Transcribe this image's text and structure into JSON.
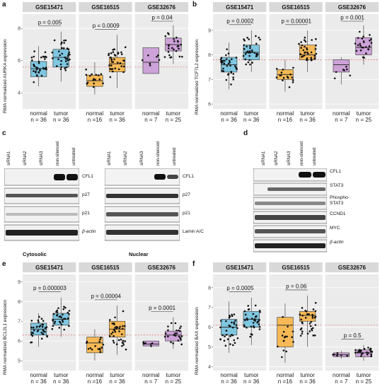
{
  "panels": {
    "a": {
      "letter": "a",
      "ylabel": "RMA normalized AURKA expression",
      "ylim": [
        3,
        8.8
      ],
      "yticks": [
        4,
        6,
        8
      ],
      "refline": 5.6,
      "groups": [
        {
          "title": "GSE15471",
          "pvalue": "p = 0.005",
          "boxes": [
            {
              "x": "normal",
              "n": "n = 36",
              "color": "#7fc6e0",
              "q1": 5.0,
              "median": 5.5,
              "q3": 5.95,
              "lo": 4.4,
              "hi": 6.9
            },
            {
              "x": "tumor",
              "n": "n = 36",
              "color": "#7fc6e0",
              "q1": 5.6,
              "median": 6.2,
              "q3": 6.7,
              "lo": 4.7,
              "hi": 7.8
            }
          ]
        },
        {
          "title": "GSE16515",
          "pvalue": "p = 0.0009",
          "boxes": [
            {
              "x": "normal",
              "n": "n =16",
              "color": "#f6b955",
              "q1": 4.4,
              "median": 4.75,
              "q3": 5.1,
              "lo": 3.9,
              "hi": 5.9
            },
            {
              "x": "tumor",
              "n": "n = 36",
              "color": "#f6b955",
              "q1": 5.3,
              "median": 5.8,
              "q3": 6.2,
              "lo": 4.3,
              "hi": 7.6
            }
          ]
        },
        {
          "title": "GSE32676",
          "pvalue": "p = 0.04",
          "boxes": [
            {
              "x": "normal",
              "n": "n = 7",
              "color": "#cda2d8",
              "q1": 5.2,
              "median": 5.9,
              "q3": 6.8,
              "lo": 5.2,
              "hi": 6.8
            },
            {
              "x": "tumor",
              "n": "n = 25",
              "color": "#cda2d8",
              "q1": 6.6,
              "median": 7.0,
              "q3": 7.4,
              "lo": 5.8,
              "hi": 8.2
            }
          ]
        }
      ]
    },
    "b": {
      "letter": "b",
      "ylabel": "RMA normalized TCF7L2 expression",
      "ylim": [
        5.8,
        9.6
      ],
      "yticks": [
        6,
        7,
        8,
        9
      ],
      "refline": 7.8,
      "groups": [
        {
          "title": "GSE15471",
          "pvalue": "p = 0.0002",
          "boxes": [
            {
              "x": "normal",
              "n": "n = 36",
              "color": "#7fc6e0",
              "q1": 7.3,
              "median": 7.6,
              "q3": 7.9,
              "lo": 6.6,
              "hi": 8.5
            },
            {
              "x": "tumor",
              "n": "n = 36",
              "color": "#7fc6e0",
              "q1": 7.8,
              "median": 8.1,
              "q3": 8.4,
              "lo": 7.3,
              "hi": 9.0
            }
          ]
        },
        {
          "title": "GSE16515",
          "pvalue": "p = 0.00001",
          "boxes": [
            {
              "x": "normal",
              "n": "n =16",
              "color": "#f6b955",
              "q1": 7.0,
              "median": 7.2,
              "q3": 7.4,
              "lo": 6.5,
              "hi": 7.8
            },
            {
              "x": "tumor",
              "n": "n = 36",
              "color": "#f6b955",
              "q1": 7.8,
              "median": 8.0,
              "q3": 8.4,
              "lo": 7.3,
              "hi": 9.0
            }
          ]
        },
        {
          "title": "GSE32676",
          "pvalue": "p = 0.001",
          "boxes": [
            {
              "x": "normal",
              "n": "n = 7",
              "color": "#cda2d8",
              "q1": 7.3,
              "median": 7.6,
              "q3": 7.8,
              "lo": 6.8,
              "hi": 7.9
            },
            {
              "x": "tumor",
              "n": "n = 25",
              "color": "#cda2d8",
              "q1": 8.0,
              "median": 8.3,
              "q3": 8.7,
              "lo": 7.6,
              "hi": 9.2
            }
          ]
        }
      ]
    },
    "e": {
      "letter": "e",
      "ylabel": "RMA normalized BCL2L1 expression",
      "ylim": [
        4.5,
        9.3
      ],
      "yticks": [
        5,
        6,
        7,
        8,
        9
      ],
      "refline": 6.3,
      "groups": [
        {
          "title": "GSE15471",
          "pvalue": "p = 0.000003",
          "boxes": [
            {
              "x": "normal",
              "n": "n = 36",
              "color": "#7fc6e0",
              "q1": 6.3,
              "median": 6.6,
              "q3": 6.9,
              "lo": 5.7,
              "hi": 7.4
            },
            {
              "x": "tumor",
              "n": "n = 36",
              "color": "#7fc6e0",
              "q1": 6.8,
              "median": 7.1,
              "q3": 7.4,
              "lo": 6.2,
              "hi": 8.2
            }
          ]
        },
        {
          "title": "GSE16515",
          "pvalue": "p = 0.00004",
          "boxes": [
            {
              "x": "normal",
              "n": "n =16",
              "color": "#f6b955",
              "q1": 5.4,
              "median": 5.9,
              "q3": 6.2,
              "lo": 5.0,
              "hi": 6.6
            },
            {
              "x": "tumor",
              "n": "n = 36",
              "color": "#f6b955",
              "q1": 6.2,
              "median": 6.6,
              "q3": 7.0,
              "lo": 5.3,
              "hi": 7.8
            }
          ]
        },
        {
          "title": "GSE32676",
          "pvalue": "p = 0.0001",
          "boxes": [
            {
              "x": "normal",
              "n": "n = 7",
              "color": "#cda2d8",
              "q1": 5.75,
              "median": 5.85,
              "q3": 6.0,
              "lo": 5.7,
              "hi": 6.0
            },
            {
              "x": "tumor",
              "n": "n = 25",
              "color": "#cda2d8",
              "q1": 6.0,
              "median": 6.3,
              "q3": 6.5,
              "lo": 5.6,
              "hi": 7.2
            }
          ]
        }
      ]
    },
    "f": {
      "letter": "f",
      "ylabel": "RMA normalized BAX expression",
      "ylim": [
        3.8,
        8.6
      ],
      "yticks": [
        4,
        5,
        6,
        7,
        8
      ],
      "refline": 6.1,
      "groups": [
        {
          "title": "GSE15471",
          "pvalue": "p = 0.0005",
          "boxes": [
            {
              "x": "normal",
              "n": "n = 36",
              "color": "#7fc6e0",
              "q1": 5.6,
              "median": 6.0,
              "q3": 6.4,
              "lo": 4.7,
              "hi": 7.3
            },
            {
              "x": "tumor",
              "n": "n = 36",
              "color": "#7fc6e0",
              "q1": 6.0,
              "median": 6.4,
              "q3": 6.8,
              "lo": 5.1,
              "hi": 7.5
            }
          ]
        },
        {
          "title": "GSE16515",
          "pvalue": "p = 0.06",
          "boxes": [
            {
              "x": "normal",
              "n": "n =16",
              "color": "#f6b955",
              "q1": 5.0,
              "median": 6.1,
              "q3": 6.5,
              "lo": 4.2,
              "hi": 7.2
            },
            {
              "x": "tumor",
              "n": "n = 36",
              "color": "#f6b955",
              "q1": 6.3,
              "median": 6.6,
              "q3": 6.8,
              "lo": 5.0,
              "hi": 7.6
            }
          ]
        },
        {
          "title": "GSE32676",
          "pvalue": "p = 0.5",
          "boxes": [
            {
              "x": "normal",
              "n": "n = 7",
              "color": "#cda2d8",
              "q1": 4.5,
              "median": 4.6,
              "q3": 4.7,
              "lo": 4.4,
              "hi": 4.8
            },
            {
              "x": "tumor",
              "n": "n = 25",
              "color": "#cda2d8",
              "q1": 4.5,
              "median": 4.7,
              "q3": 4.85,
              "lo": 4.3,
              "hi": 5.1
            }
          ]
        }
      ]
    }
  },
  "blots": {
    "c": {
      "letter": "c",
      "left": {
        "columns": [
          "siRNA1",
          "siRNA2",
          "siRNA3",
          "non-silenced",
          "untreated"
        ],
        "rows": [
          "CFL1",
          "p27",
          "p21",
          "β-actin"
        ],
        "caption": "Cytosolic"
      },
      "right": {
        "columns": [
          "siRNA1",
          "siRNA2",
          "siRNA3",
          "non-silenced",
          "untreated"
        ],
        "rows": [
          "CFL1",
          "p27",
          "p21",
          "Lamin A/C"
        ],
        "caption": "Nuclear"
      }
    },
    "d": {
      "letter": "d",
      "columns": [
        "siRNA1",
        "siRNA2",
        "siRNA3",
        "non-silenced",
        "untreated"
      ],
      "rows": [
        "CFL1",
        "STAT3",
        "Phospho-STAT3",
        "CCND1",
        "MYC",
        "β-actin"
      ]
    }
  }
}
